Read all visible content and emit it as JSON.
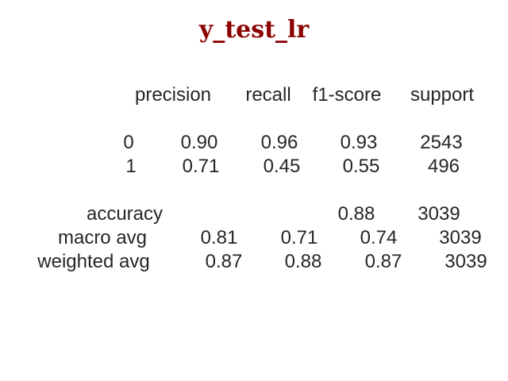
{
  "chart_data": {
    "type": "table",
    "title": "y_test_lr",
    "title_color": "#8b0000",
    "text_color": "#262626",
    "columns": [
      "precision",
      "recall",
      "f1-score",
      "support"
    ],
    "rows": [
      {
        "label": "0",
        "values": [
          "0.90",
          "0.96",
          "0.93",
          "2543"
        ]
      },
      {
        "label": "1",
        "values": [
          "0.71",
          "0.45",
          "0.55",
          "496"
        ]
      },
      {
        "label": "accuracy",
        "values": [
          "",
          "",
          "0.88",
          "3039"
        ]
      },
      {
        "label": "macro avg",
        "values": [
          "0.81",
          "0.71",
          "0.74",
          "3039"
        ]
      },
      {
        "label": "weighted avg",
        "values": [
          "0.87",
          "0.88",
          "0.87",
          "3039"
        ]
      }
    ]
  }
}
